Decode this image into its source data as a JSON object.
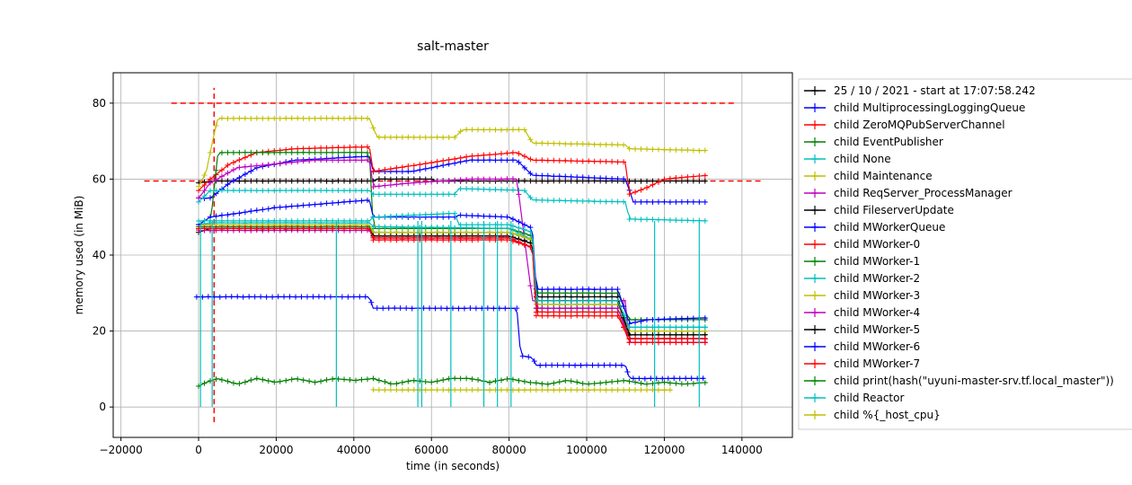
{
  "chart_data": {
    "type": "line",
    "title": "salt-master",
    "xlabel": "time (in seconds)",
    "ylabel": "memory used (in MiB)",
    "xlim": [
      -22000,
      153000
    ],
    "ylim": [
      -8,
      88
    ],
    "xticks": [
      -20000,
      0,
      20000,
      40000,
      60000,
      80000,
      100000,
      120000,
      140000
    ],
    "xtick_labels": [
      "−20000",
      "0",
      "20000",
      "40000",
      "60000",
      "80000",
      "100000",
      "120000",
      "140000"
    ],
    "yticks": [
      0,
      20,
      40,
      60,
      80
    ],
    "ytick_labels": [
      "0",
      "20",
      "40",
      "60",
      "80"
    ],
    "grid": true,
    "legend_position": "right-outside",
    "reference_lines": [
      {
        "orientation": "horizontal",
        "y": 80,
        "x_range": [
          -7000,
          138000
        ],
        "color": "#ff0000"
      },
      {
        "orientation": "horizontal",
        "y": 59.5,
        "x_range": [
          -14000,
          145000
        ],
        "color": "#ff0000"
      },
      {
        "orientation": "vertical",
        "x": 4000,
        "y_range": [
          -4,
          84
        ],
        "color": "#ff0000"
      }
    ],
    "series": [
      {
        "name": "25 / 10 / 2021 - start at 17:07:58.242",
        "color": "#000000",
        "points": [
          [
            0,
            59
          ],
          [
            4000,
            59.5
          ],
          [
            45000,
            59.5
          ],
          [
            46000,
            60
          ],
          [
            60000,
            60
          ],
          [
            61000,
            59.5
          ],
          [
            131000,
            59.5
          ]
        ]
      },
      {
        "name": "child MultiprocessingLoggingQueue",
        "color": "#0000ff",
        "points": [
          [
            0,
            55
          ],
          [
            3000,
            55
          ],
          [
            8000,
            59
          ],
          [
            15000,
            63
          ],
          [
            25000,
            65
          ],
          [
            44000,
            66
          ],
          [
            45000,
            62
          ],
          [
            55000,
            62
          ],
          [
            60000,
            63
          ],
          [
            70000,
            65
          ],
          [
            82000,
            65
          ],
          [
            86000,
            61
          ],
          [
            110000,
            60
          ],
          [
            112000,
            54
          ],
          [
            131000,
            54
          ]
        ]
      },
      {
        "name": "child ZeroMQPubServerChannel",
        "color": "#ff0000",
        "points": [
          [
            0,
            57
          ],
          [
            3000,
            60
          ],
          [
            8000,
            64
          ],
          [
            15000,
            67
          ],
          [
            25000,
            68
          ],
          [
            44000,
            68.5
          ],
          [
            45000,
            62
          ],
          [
            58000,
            64
          ],
          [
            70000,
            66
          ],
          [
            82000,
            67
          ],
          [
            86000,
            65
          ],
          [
            110000,
            64.5
          ],
          [
            111000,
            56
          ],
          [
            116000,
            58
          ],
          [
            120000,
            60
          ],
          [
            131000,
            61
          ]
        ]
      },
      {
        "name": "child EventPublisher",
        "color": "#008000",
        "points": [
          [
            0,
            48
          ],
          [
            3000,
            48
          ],
          [
            5000,
            67
          ],
          [
            44000,
            67
          ],
          [
            45000,
            47
          ],
          [
            80000,
            47
          ],
          [
            86000,
            45
          ],
          [
            87000,
            30
          ],
          [
            108000,
            30
          ],
          [
            111000,
            23
          ],
          [
            131000,
            23
          ]
        ]
      },
      {
        "name": "child None",
        "color": "#00bfbf",
        "points": [
          [
            0,
            54
          ],
          [
            3000,
            57
          ],
          [
            44000,
            57
          ],
          [
            45000,
            56
          ],
          [
            66000,
            56
          ],
          [
            67000,
            57.5
          ],
          [
            84000,
            57
          ],
          [
            86000,
            54.5
          ],
          [
            110000,
            54
          ],
          [
            111000,
            49.5
          ],
          [
            131000,
            49
          ]
        ]
      },
      {
        "name": "child Maintenance",
        "color": "#bfbf00",
        "points": [
          [
            0,
            58
          ],
          [
            2000,
            62
          ],
          [
            4000,
            72
          ],
          [
            5000,
            76
          ],
          [
            44000,
            76
          ],
          [
            46000,
            71
          ],
          [
            66000,
            71
          ],
          [
            68000,
            73
          ],
          [
            84000,
            73
          ],
          [
            86000,
            69.5
          ],
          [
            110000,
            69
          ],
          [
            111000,
            68
          ],
          [
            131000,
            67.5
          ]
        ]
      },
      {
        "name": "child ReqServer_ProcessManager",
        "color": "#bf00bf",
        "points": [
          [
            0,
            55
          ],
          [
            3000,
            59
          ],
          [
            10000,
            63
          ],
          [
            30000,
            65
          ],
          [
            44000,
            65
          ],
          [
            45000,
            58
          ],
          [
            55000,
            59
          ],
          [
            70000,
            60
          ],
          [
            82000,
            60
          ],
          [
            86000,
            28
          ],
          [
            110000,
            28
          ],
          [
            111000,
            17
          ],
          [
            131000,
            17
          ]
        ]
      },
      {
        "name": "child FileserverUpdate",
        "color": "#000000",
        "points": [
          [
            0,
            46
          ],
          [
            3000,
            47
          ],
          [
            44000,
            47
          ],
          [
            45000,
            45
          ],
          [
            80000,
            45
          ],
          [
            86000,
            43
          ],
          [
            87000,
            29
          ],
          [
            108000,
            29
          ],
          [
            111000,
            18
          ],
          [
            131000,
            18
          ]
        ]
      },
      {
        "name": "child MWorkerQueue",
        "color": "#0000ff",
        "points": [
          [
            -500,
            29
          ],
          [
            44000,
            29
          ],
          [
            45000,
            26
          ],
          [
            82000,
            26
          ],
          [
            83000,
            13.5
          ],
          [
            86000,
            13
          ],
          [
            87000,
            11
          ],
          [
            110000,
            11
          ],
          [
            111000,
            7.5
          ],
          [
            131000,
            7.5
          ]
        ]
      },
      {
        "name": "child MWorker-0",
        "color": "#ff0000",
        "points": [
          [
            0,
            47
          ],
          [
            3000,
            47
          ],
          [
            44000,
            47
          ],
          [
            45000,
            44
          ],
          [
            80000,
            44
          ],
          [
            86000,
            42
          ],
          [
            87000,
            25
          ],
          [
            108000,
            25
          ],
          [
            111000,
            17
          ],
          [
            131000,
            17
          ]
        ]
      },
      {
        "name": "child MWorker-1",
        "color": "#008000",
        "points": [
          [
            0,
            47.5
          ],
          [
            3000,
            47.5
          ],
          [
            44000,
            47.5
          ],
          [
            45000,
            46
          ],
          [
            80000,
            46
          ],
          [
            86000,
            44
          ],
          [
            87000,
            26
          ],
          [
            108000,
            26
          ],
          [
            111000,
            19
          ],
          [
            131000,
            19
          ]
        ]
      },
      {
        "name": "child MWorker-2",
        "color": "#00bfbf",
        "points": [
          [
            0,
            48
          ],
          [
            3000,
            48.5
          ],
          [
            44000,
            48.5
          ],
          [
            45000,
            47.5
          ],
          [
            80000,
            47
          ],
          [
            86000,
            44
          ],
          [
            87000,
            27
          ],
          [
            108000,
            27
          ],
          [
            111000,
            21
          ],
          [
            131000,
            21
          ]
        ]
      },
      {
        "name": "child MWorker-3",
        "color": "#bfbf00",
        "points": [
          [
            0,
            48
          ],
          [
            3000,
            48
          ],
          [
            44000,
            48
          ],
          [
            45000,
            46
          ],
          [
            80000,
            46
          ],
          [
            86000,
            44
          ],
          [
            87000,
            27
          ],
          [
            108000,
            27
          ],
          [
            111000,
            20
          ],
          [
            131000,
            20
          ]
        ]
      },
      {
        "name": "child MWorker-4",
        "color": "#bf00bf",
        "points": [
          [
            0,
            46.5
          ],
          [
            3000,
            46.5
          ],
          [
            44000,
            46.5
          ],
          [
            45000,
            44.5
          ],
          [
            80000,
            44.5
          ],
          [
            86000,
            42
          ],
          [
            87000,
            26
          ],
          [
            108000,
            26
          ],
          [
            111000,
            18
          ],
          [
            131000,
            18
          ]
        ]
      },
      {
        "name": "child MWorker-5",
        "color": "#000000",
        "points": [
          [
            0,
            47
          ],
          [
            3000,
            47
          ],
          [
            44000,
            47
          ],
          [
            45000,
            45
          ],
          [
            80000,
            45
          ],
          [
            86000,
            43
          ],
          [
            87000,
            28
          ],
          [
            108000,
            28
          ],
          [
            111000,
            19
          ],
          [
            131000,
            19
          ]
        ]
      },
      {
        "name": "child MWorker-6",
        "color": "#0000ff",
        "points": [
          [
            0,
            48
          ],
          [
            3000,
            50
          ],
          [
            10000,
            51
          ],
          [
            20000,
            52.5
          ],
          [
            44000,
            54.5
          ],
          [
            45000,
            50
          ],
          [
            66000,
            50
          ],
          [
            67000,
            50.5
          ],
          [
            80000,
            50
          ],
          [
            86000,
            47
          ],
          [
            87000,
            31
          ],
          [
            108000,
            31
          ],
          [
            111000,
            22
          ],
          [
            116000,
            23
          ],
          [
            131000,
            23.5
          ]
        ]
      },
      {
        "name": "child MWorker-7",
        "color": "#ff0000",
        "points": [
          [
            0,
            47
          ],
          [
            3000,
            47
          ],
          [
            44000,
            47
          ],
          [
            45000,
            44.5
          ],
          [
            80000,
            44.5
          ],
          [
            86000,
            42
          ],
          [
            87000,
            24
          ],
          [
            108000,
            24
          ],
          [
            111000,
            18
          ],
          [
            131000,
            18
          ]
        ]
      },
      {
        "name": "child print(hash(\"uyuni-master-srv.tf.local_master\"))",
        "color": "#008000",
        "points": [
          [
            0,
            5.5
          ],
          [
            2000,
            6.5
          ],
          [
            5000,
            7.5
          ],
          [
            10000,
            6
          ],
          [
            15000,
            7.5
          ],
          [
            20000,
            6.5
          ],
          [
            25000,
            7.5
          ],
          [
            30000,
            6.5
          ],
          [
            35000,
            7.5
          ],
          [
            40000,
            7
          ],
          [
            45000,
            7.5
          ],
          [
            50000,
            6
          ],
          [
            55000,
            7
          ],
          [
            60000,
            6.5
          ],
          [
            65000,
            7.5
          ],
          [
            70000,
            7.5
          ],
          [
            75000,
            6.5
          ],
          [
            80000,
            7.5
          ],
          [
            85000,
            6.5
          ],
          [
            90000,
            6
          ],
          [
            95000,
            7
          ],
          [
            100000,
            6
          ],
          [
            105000,
            6.5
          ],
          [
            110000,
            7
          ],
          [
            115000,
            6
          ],
          [
            120000,
            6.5
          ],
          [
            125000,
            6
          ],
          [
            131000,
            6.5
          ]
        ]
      },
      {
        "name": "child Reactor",
        "color": "#00bfbf",
        "points": [
          [
            0,
            49
          ],
          [
            44000,
            49
          ],
          [
            45000,
            50
          ],
          [
            66000,
            51
          ],
          [
            67000,
            48
          ],
          [
            80000,
            48
          ],
          [
            86000,
            46
          ],
          [
            87000,
            28
          ],
          [
            108000,
            28
          ],
          [
            111000,
            21
          ],
          [
            131000,
            21
          ]
        ]
      },
      {
        "name": "child %{_host_cpu}",
        "color": "#bfbf00",
        "points": [
          [
            45000,
            4.5
          ],
          [
            122000,
            4.5
          ]
        ]
      }
    ],
    "spikes": [
      {
        "color": "#00bfbf",
        "x": [
          500,
          3500,
          35500,
          56500,
          57500,
          65000,
          73500,
          77000,
          80500,
          117500,
          129000
        ],
        "y_to": 0
      }
    ]
  }
}
